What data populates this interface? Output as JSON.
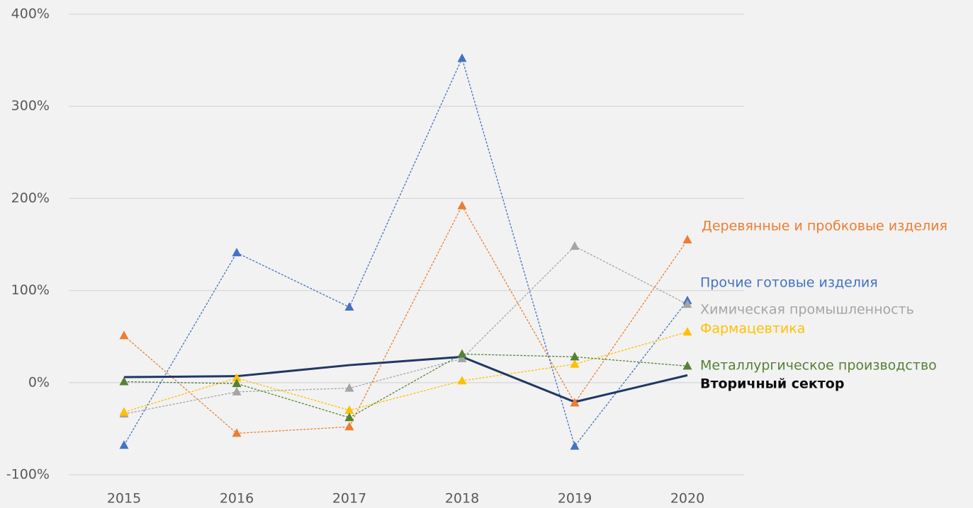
{
  "chart_data": {
    "type": "line",
    "categories": [
      "2015",
      "2016",
      "2017",
      "2018",
      "2019",
      "2020"
    ],
    "ylim": [
      -100,
      400
    ],
    "yticks": [
      {
        "value": -100,
        "label": "-100%"
      },
      {
        "value": 0,
        "label": "0%"
      },
      {
        "value": 100,
        "label": "100%"
      },
      {
        "value": 200,
        "label": "200%"
      },
      {
        "value": 300,
        "label": "300%"
      },
      {
        "value": 400,
        "label": "400%"
      }
    ],
    "grid": true,
    "series": [
      {
        "name": "Деревянные и пробковые изделия",
        "color": "#ed7d31",
        "dashed": true,
        "markers": true,
        "values": [
          51,
          -55,
          -48,
          192,
          -22,
          155
        ]
      },
      {
        "name": "Прочие готовые изделия",
        "color": "#4472c4",
        "dashed": true,
        "markers": true,
        "values": [
          -68,
          141,
          82,
          352,
          -69,
          89
        ]
      },
      {
        "name": "Химическая промышленность",
        "color": "#a5a5a5",
        "dashed": true,
        "markers": true,
        "values": [
          -34,
          -10,
          -6,
          26,
          148,
          85
        ]
      },
      {
        "name": "Фармацевтика",
        "color": "#ffc000",
        "dashed": true,
        "markers": true,
        "values": [
          -32,
          5,
          -30,
          2,
          20,
          55
        ]
      },
      {
        "name": "Металлургическое производство",
        "color": "#548235",
        "dashed": true,
        "markers": true,
        "values": [
          1,
          -1,
          -38,
          31,
          28,
          18
        ]
      },
      {
        "name": "Вторичный сектор",
        "color": "#203864",
        "dashed": false,
        "markers": false,
        "values": [
          6,
          7,
          19,
          28,
          -21,
          8
        ]
      }
    ]
  }
}
